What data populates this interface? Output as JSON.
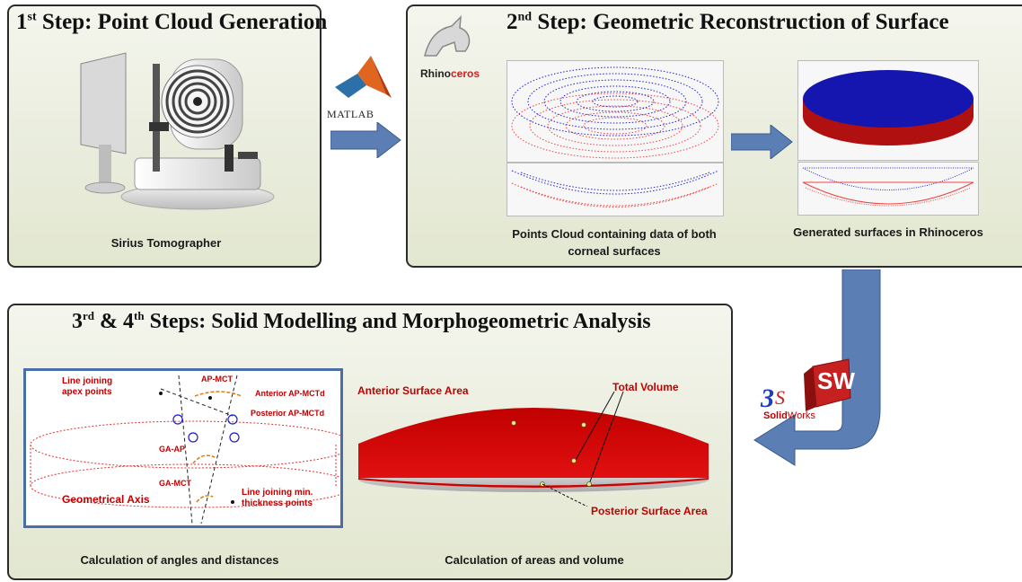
{
  "step1": {
    "title": "Point Cloud Generation",
    "title_prefix": "1",
    "title_sup": "st",
    "title_step": "Step:",
    "caption": "Sirius Tomographer"
  },
  "matlab": {
    "label": "MATLAB"
  },
  "step2": {
    "title_prefix": "2",
    "title_sup": "nd",
    "title_step": "Step:",
    "title": "Geometric Reconstruction of Surface",
    "logo_a": "Rhino",
    "logo_b": "ceros",
    "caption_left_1": "Points Cloud containing data of both",
    "caption_left_2": "corneal surfaces",
    "caption_right": "Generated surfaces in Rhinoceros"
  },
  "solidworks": {
    "label_a": "Solid",
    "label_b": "Works",
    "badge": "SW"
  },
  "step34": {
    "title_a": "3",
    "sup_a": "rd",
    "amp": "&",
    "title_b": "4",
    "sup_b": "th",
    "title": "Steps: Solid Modelling and Morphogeometric Analysis",
    "caption_left": "Calculation of angles and distances",
    "caption_right": "Calculation of areas and volume",
    "angles": {
      "line_apex": [
        "Line joining",
        "apex points"
      ],
      "ap_mct": "AP-MCT",
      "ant_ap": "Anterior AP-MCTd",
      "post_ap": "Posterior AP-MCTd",
      "ga_ap": "GA-AP",
      "ga_mct": "GA-MCT",
      "geo_axis": "Geometrical Axis",
      "line_min": [
        "Line joining min.",
        "thickness points"
      ]
    },
    "areas": {
      "anterior": "Anterior Surface Area",
      "total": "Total Volume",
      "posterior": "Posterior Surface Area"
    }
  },
  "colors": {
    "arrow": "#5b7fb5",
    "panel_border": "#2b2b2b",
    "red": "#c00000",
    "blue": "#1a1acc"
  }
}
